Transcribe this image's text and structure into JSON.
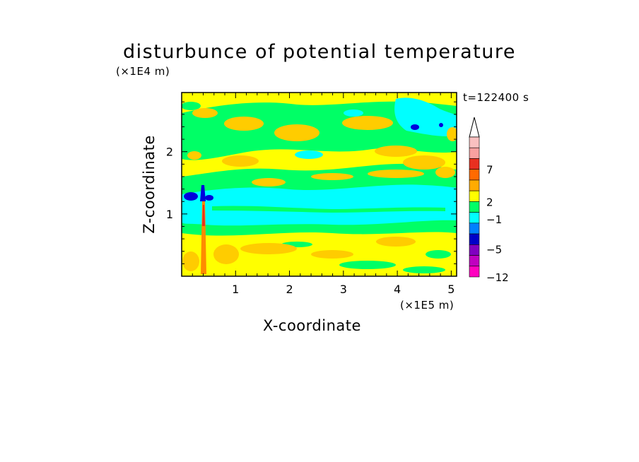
{
  "chart_data": {
    "type": "heatmap",
    "title": "disturbunce of potential temperature",
    "xlabel": "X-coordinate",
    "ylabel": "Z-coordinate",
    "x_unit": "(×1E5 m)",
    "y_unit": "(×1E4 m)",
    "timestamp": "t=122400 s",
    "xlim": [
      0,
      5.1
    ],
    "ylim": [
      0,
      2.95
    ],
    "x_ticks": [
      "1",
      "2",
      "3",
      "4",
      "5"
    ],
    "y_ticks": [
      "1",
      "2"
    ],
    "colorbar": {
      "labels": [
        "7",
        "2",
        "−1",
        "−5",
        "−12"
      ],
      "label_values": [
        7,
        2,
        -1,
        -5,
        -12
      ],
      "colors": [
        "#f9c0c0",
        "#f9a0a0",
        "#e83020",
        "#ff6a00",
        "#ffab00",
        "#ffff00",
        "#00ff66",
        "#00ffff",
        "#0080ff",
        "#0000c8",
        "#8000c0",
        "#c000c0",
        "#ff00c0"
      ],
      "extend": "max"
    },
    "field_colors": {
      "yellow": "#ffff00",
      "orange": "#ffcc00",
      "green": "#00ff66",
      "cyan": "#00ffff",
      "blue": "#0000dd"
    }
  }
}
